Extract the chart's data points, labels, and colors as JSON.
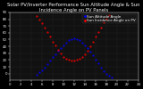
{
  "title": "Solar PV/Inverter Performance Sun Altitude Angle & Sun Incidence Angle on PV Panels",
  "legend_labels": [
    "Sun Altitude Angle",
    "Sun Incidence Angle on PV"
  ],
  "legend_colors": [
    "#0000ff",
    "#ff0000"
  ],
  "xlim": [
    0,
    24
  ],
  "ylim": [
    -10,
    90
  ],
  "xticks": [
    0,
    2,
    4,
    6,
    8,
    10,
    12,
    14,
    16,
    18,
    20,
    22,
    24
  ],
  "yticks": [
    0,
    10,
    20,
    30,
    40,
    50,
    60,
    70,
    80,
    90
  ],
  "blue_x": [
    5.0,
    5.5,
    6.0,
    6.5,
    7.0,
    7.5,
    8.0,
    8.5,
    9.0,
    9.5,
    10.0,
    10.5,
    11.0,
    11.5,
    12.0,
    12.5,
    13.0,
    13.5,
    14.0,
    14.5,
    15.0,
    15.5,
    16.0,
    16.5,
    17.0,
    17.5,
    18.0,
    18.5,
    19.0
  ],
  "blue_y": [
    -2,
    2,
    5,
    9,
    14,
    19,
    24,
    29,
    34,
    38,
    42,
    46,
    49,
    51,
    52,
    51,
    49,
    46,
    42,
    38,
    33,
    27,
    21,
    15,
    9,
    4,
    0,
    -3,
    -5
  ],
  "red_x": [
    5.0,
    5.5,
    6.0,
    6.5,
    7.0,
    7.5,
    8.0,
    8.5,
    9.0,
    9.5,
    10.0,
    10.5,
    11.0,
    11.5,
    12.0,
    12.5,
    13.0,
    13.5,
    14.0,
    14.5,
    15.0,
    15.5,
    16.0,
    16.5,
    17.0,
    17.5,
    18.0,
    18.5
  ],
  "red_y": [
    85,
    80,
    74,
    68,
    61,
    54,
    47,
    41,
    35,
    30,
    25,
    22,
    20,
    19,
    19,
    20,
    22,
    25,
    29,
    34,
    40,
    47,
    54,
    61,
    68,
    75,
    81,
    86
  ],
  "bg_color": "#000000",
  "plot_bg_color": "#111111",
  "grid_color": "#555555",
  "text_color": "#ffffff",
  "title_fontsize": 3.8,
  "tick_fontsize": 2.8,
  "legend_fontsize": 3.0,
  "marker_size": 1.0
}
